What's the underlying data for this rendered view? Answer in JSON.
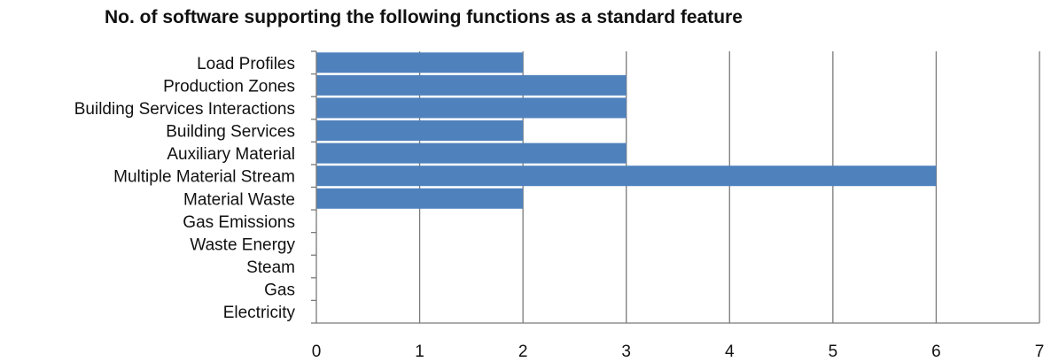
{
  "chart_data": {
    "type": "bar",
    "orientation": "horizontal",
    "title": "No. of software supporting the following functions as a standard feature",
    "xlabel": "",
    "ylabel": "",
    "categories": [
      "Load Profiles",
      "Production Zones",
      "Building Services Interactions",
      "Building Services",
      "Auxiliary Material",
      "Multiple Material Stream",
      "Material Waste",
      "Gas Emissions",
      "Waste Energy",
      "Steam",
      "Gas",
      "Electricity"
    ],
    "values": [
      2,
      3,
      3,
      2,
      3,
      6,
      2,
      0,
      0,
      0,
      0,
      0
    ],
    "xlim": [
      0,
      7
    ],
    "x_ticks": [
      "0",
      "1",
      "2",
      "3",
      "4",
      "5",
      "6",
      "7"
    ],
    "grid": "vertical",
    "legend": "none",
    "bar_color": "#4f81bd"
  }
}
